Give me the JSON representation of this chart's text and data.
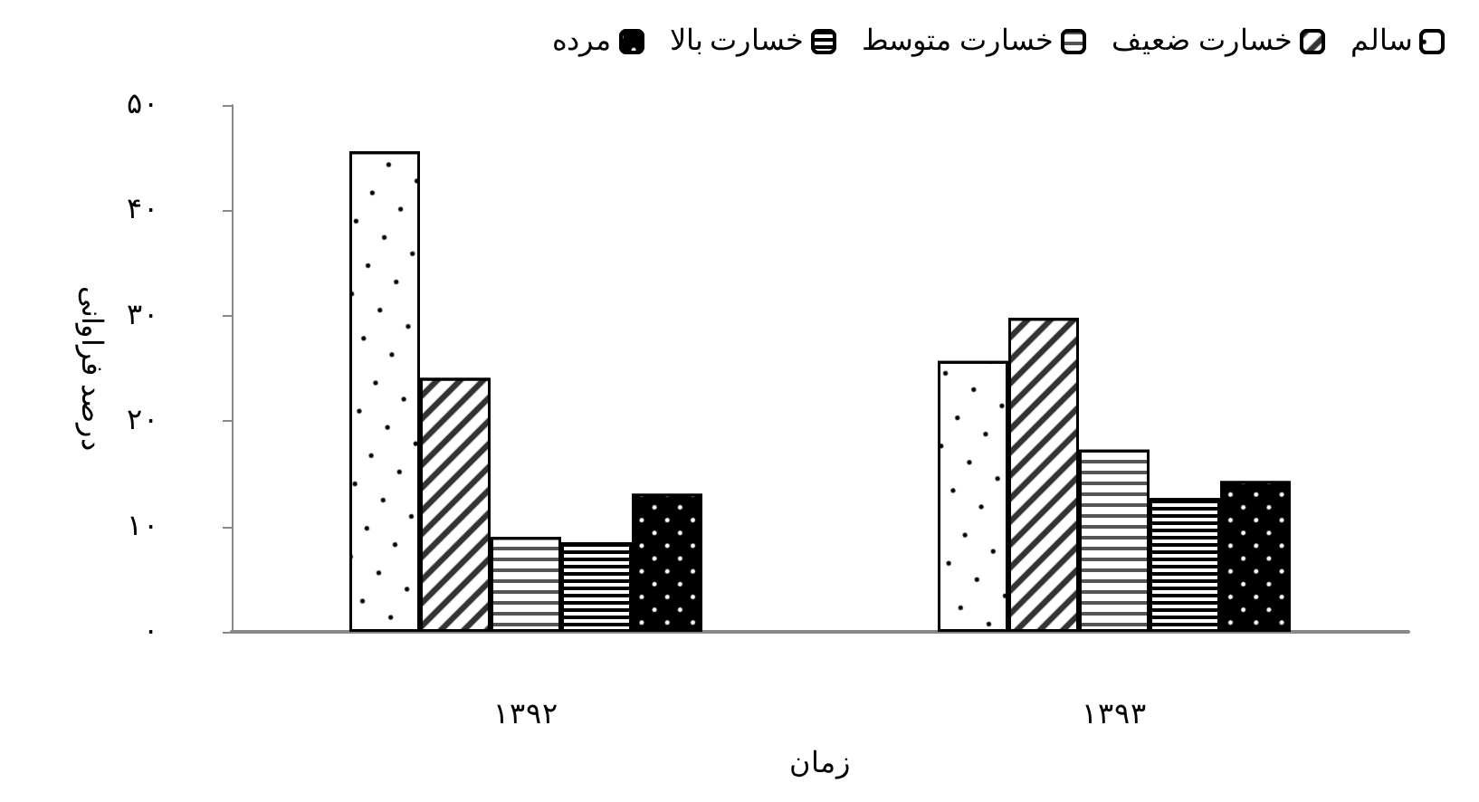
{
  "chart_data": {
    "type": "bar",
    "xlabel": "زمان",
    "ylabel": "درصد فراوانی",
    "categories": [
      "۱۳۹۲",
      "۱۳۹۳"
    ],
    "series": [
      {
        "name": "سالم",
        "color": "#ffffff",
        "values": [
          45.6,
          25.7
        ]
      },
      {
        "name": "خسارت ضعیف",
        "color": "#ffffff",
        "values": [
          24.1,
          29.8
        ]
      },
      {
        "name": "خسارت متوسط",
        "color": "#ffffff",
        "values": [
          9.0,
          17.3
        ]
      },
      {
        "name": "خسارت بالا",
        "color": "#ffffff",
        "values": [
          8.5,
          12.7
        ]
      },
      {
        "name": "مرده",
        "color": "#000000",
        "values": [
          13.1,
          14.3
        ]
      }
    ],
    "ylim": [
      0,
      50
    ],
    "yticks": [
      {
        "value": 0,
        "label": "۰"
      },
      {
        "value": 10,
        "label": "۱۰"
      },
      {
        "value": 20,
        "label": "۲۰"
      },
      {
        "value": 30,
        "label": "۳۰"
      },
      {
        "value": 40,
        "label": "۴۰"
      },
      {
        "value": 50,
        "label": "۵۰"
      }
    ],
    "grid": false,
    "legend": "top right"
  }
}
